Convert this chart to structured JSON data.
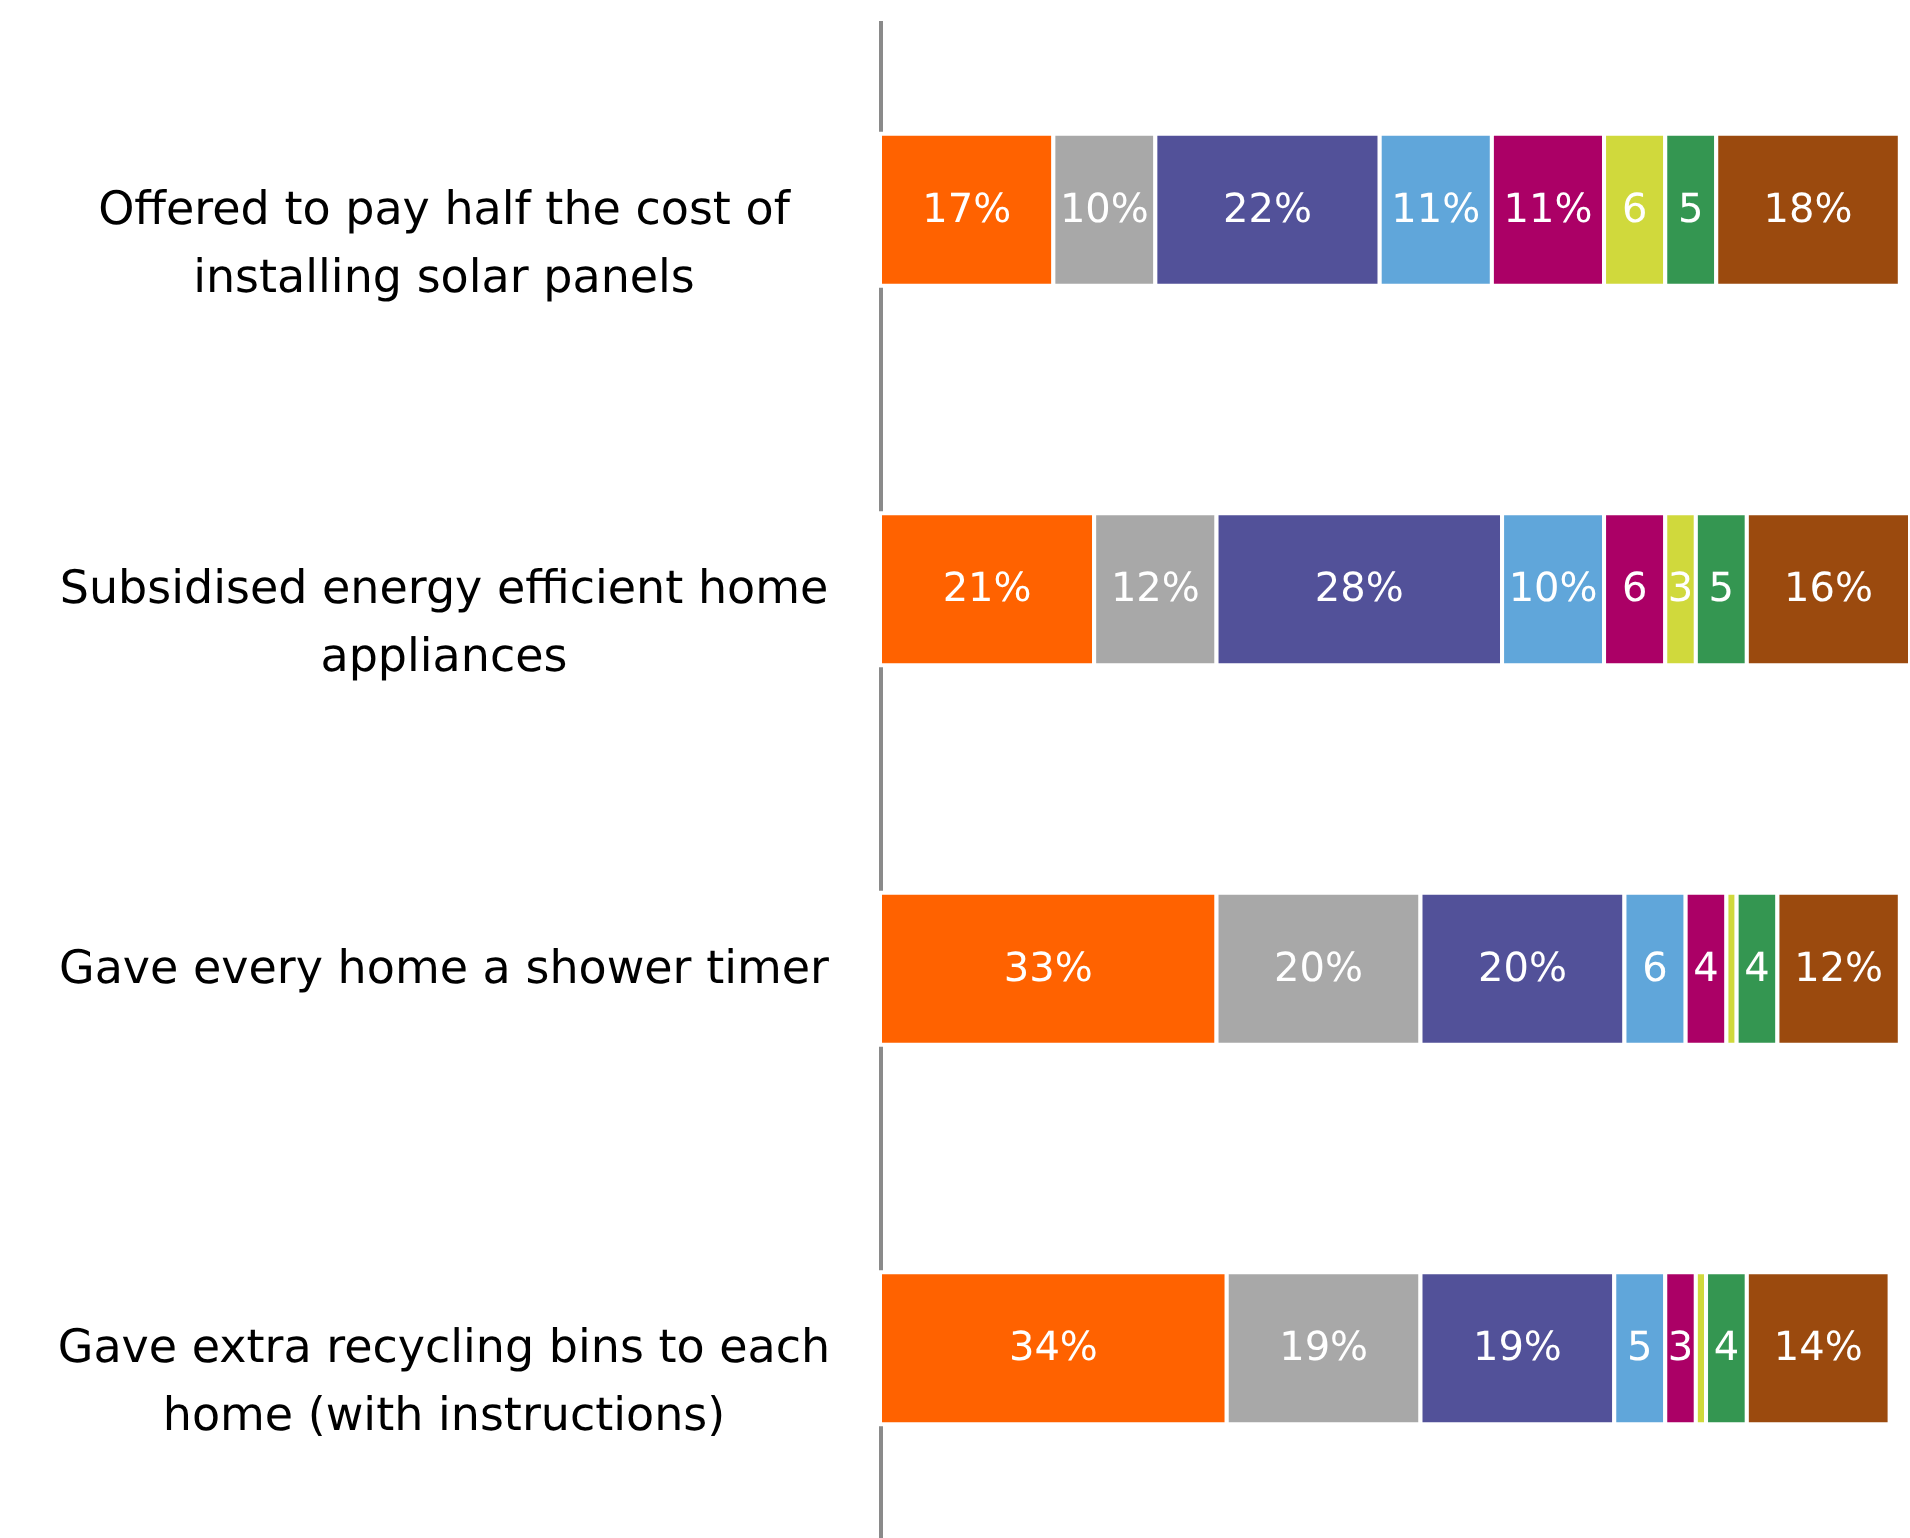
{
  "chart_data": {
    "type": "bar",
    "orientation": "horizontal",
    "stacked": true,
    "xlim": [
      0,
      101
    ],
    "categories": [
      "Offered to pay half the cost of installing solar panels",
      "Subsidised energy efficient home appliances",
      "Gave every home a shower timer",
      "Gave extra recycling bins to each home (with instructions)"
    ],
    "series": [
      {
        "color": "#ff6200",
        "values": [
          17,
          21,
          33,
          34
        ],
        "value_labels": [
          "17%",
          "21%",
          "33%",
          "34%"
        ]
      },
      {
        "color": "#a8a8a8",
        "values": [
          10,
          12,
          20,
          19
        ],
        "value_labels": [
          "10%",
          "12%",
          "20%",
          "19%"
        ]
      },
      {
        "color": "#525199",
        "values": [
          22,
          28,
          20,
          19
        ],
        "value_labels": [
          "22%",
          "28%",
          "20%",
          "19%"
        ]
      },
      {
        "color": "#60a6da",
        "values": [
          11,
          10,
          6,
          5
        ],
        "value_labels": [
          "11%",
          "10%",
          "6",
          "5"
        ]
      },
      {
        "color": "#ab0066",
        "values": [
          11,
          6,
          4,
          3
        ],
        "value_labels": [
          "11%",
          "6",
          "4",
          "3"
        ]
      },
      {
        "color": "#d0d93c",
        "values": [
          6,
          3,
          1,
          1
        ],
        "value_labels": [
          "6",
          "3",
          null,
          null
        ]
      },
      {
        "color": "#349651",
        "values": [
          5,
          5,
          4,
          4
        ],
        "value_labels": [
          "5",
          "5",
          "4",
          "4"
        ]
      },
      {
        "color": "#9b4a0e",
        "values": [
          18,
          16,
          12,
          14
        ],
        "value_labels": [
          "18%",
          "16%",
          "12%",
          "14%"
        ]
      }
    ]
  }
}
